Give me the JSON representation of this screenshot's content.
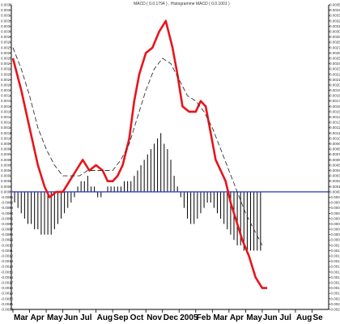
{
  "chart_data": {
    "type": "line",
    "title": "MACD ( 0.0.1794 ) , Histogramme MACD ( 0.0.1001 )",
    "months": [
      "Mar",
      "Apr",
      "May",
      "Jun",
      "Jul",
      "Aug",
      "Sep",
      "Oct",
      "Nov",
      "Dec",
      "2005",
      "Feb",
      "Mar",
      "Apr",
      "May",
      "Jun",
      "Jul",
      "Aug",
      "Se"
    ],
    "ylim": [
      -0.0022,
      0.0035
    ],
    "zero_line": 0,
    "y_ticks": [
      -0.0022,
      -0.0021,
      -0.002,
      -0.0019,
      -0.0018,
      -0.0017,
      -0.0016,
      -0.0015,
      -0.0014,
      -0.0013,
      -0.0012,
      -0.0011,
      -0.001,
      -0.0009,
      -0.0008,
      -0.0007,
      -0.0006,
      -0.0005,
      -0.0004,
      -0.0003,
      -0.0002,
      -0.0001,
      0,
      0.0001,
      0.0002,
      0.0003,
      0.0004,
      0.0005,
      0.0006,
      0.0007,
      0.0008,
      0.0009,
      0.001,
      0.0011,
      0.0012,
      0.0013,
      0.0014,
      0.0015,
      0.0016,
      0.0017,
      0.0018,
      0.0019,
      0.002,
      0.0021,
      0.0022,
      0.0023,
      0.0024,
      0.0025,
      0.0026,
      0.0027,
      0.0028,
      0.0029,
      0.003,
      0.0031,
      0.0032,
      0.0033,
      0.0034,
      0.0035
    ],
    "y_tick_labels": [
      "-0.0022",
      "-0.0021",
      "-0.0020",
      "-0.0019",
      "-0.0018",
      "-0.0017",
      "-0.0016",
      "-0.0015",
      "-0.0014",
      "-0.0013",
      "-0.0012",
      "-0.0011",
      "-0.0010",
      "-0.0009",
      "-0.0008",
      "-0.0007",
      "-0.0006",
      "-0.0005",
      "-0.0004",
      "-0.0003",
      "-0.0002",
      "-0.0001",
      "0.0000",
      "0.0001",
      "0.0002",
      "0.0003",
      "0.0004",
      "0.0005",
      "0.0006",
      "0.0007",
      "0.0008",
      "0.0009",
      "0.0010",
      "0.0011",
      "0.0012",
      "0.0013",
      "0.0014",
      "0.0015",
      "0.0016",
      "0.0017",
      "0.0018",
      "0.0019",
      "0.0020",
      "0.0021",
      "0.0022",
      "0.0023",
      "0.0024",
      "0.0025",
      "0.0026",
      "0.0027",
      "0.0028",
      "0.0029",
      "0.0030",
      "0.0031",
      "0.0032",
      "0.0033",
      "0.0034",
      "0.0035"
    ],
    "series": [
      {
        "role": "macd",
        "color": "#e8141a",
        "style": "solid",
        "x": [
          0,
          0.5,
          1,
          1.5,
          1.9,
          2.2,
          2.6,
          3,
          3.4,
          3.8,
          4.2,
          4.6,
          5,
          5.4,
          5.7,
          6,
          6.3,
          6.6,
          7,
          7.3,
          7.6,
          8,
          8.4,
          8.8,
          9.2,
          9.6,
          9.9,
          10.2,
          10.6,
          11,
          11.3,
          11.6,
          11.9,
          12.2,
          12.5,
          12.8,
          13.1,
          13.4,
          13.8,
          14.2,
          14.6,
          15,
          15.3
        ],
        "y": [
          0.0025,
          0.0019,
          0.0012,
          0.0005,
          0.0001,
          -0.0001,
          0.0,
          0.0,
          0.0002,
          0.0004,
          0.0006,
          0.0004,
          0.0005,
          0.0004,
          0.0002,
          0.0002,
          0.0003,
          0.0005,
          0.001,
          0.0017,
          0.0022,
          0.0026,
          0.0027,
          0.003,
          0.0032,
          0.0027,
          0.0022,
          0.0016,
          0.0015,
          0.0015,
          0.0017,
          0.0016,
          0.0011,
          0.0006,
          0.0004,
          0.0002,
          -0.0002,
          -0.0005,
          -0.0009,
          -0.0012,
          -0.0016,
          -0.0018,
          -0.0018
        ]
      },
      {
        "role": "signal",
        "color": "#333333",
        "style": "dashed",
        "x": [
          0,
          0.5,
          1,
          1.5,
          2,
          2.5,
          3,
          3.5,
          4,
          4.5,
          5,
          5.5,
          6,
          6.5,
          7,
          7.5,
          8,
          8.5,
          9,
          9.5,
          10,
          10.5,
          11,
          11.5,
          12,
          12.5,
          13,
          13.5,
          14,
          14.5,
          15
        ],
        "y": [
          0.0027,
          0.0023,
          0.0018,
          0.0012,
          0.0008,
          0.0005,
          0.0003,
          0.0003,
          0.0003,
          0.0004,
          0.0004,
          0.0004,
          0.0004,
          0.0006,
          0.0009,
          0.0014,
          0.0019,
          0.0023,
          0.0025,
          0.0024,
          0.0021,
          0.0018,
          0.0017,
          0.0015,
          0.0012,
          0.0008,
          0.0004,
          0.0,
          -0.0004,
          -0.0007,
          -0.001
        ]
      }
    ],
    "histogram": {
      "x": [
        0.1,
        0.3,
        0.5,
        0.7,
        0.9,
        1.1,
        1.3,
        1.5,
        1.7,
        1.9,
        2.1,
        2.3,
        2.5,
        2.7,
        2.9,
        3.1,
        3.3,
        3.5,
        3.7,
        3.9,
        4.1,
        4.3,
        4.5,
        4.7,
        4.9,
        5.1,
        5.3,
        5.5,
        5.7,
        5.9,
        6.1,
        6.3,
        6.5,
        6.7,
        6.9,
        7.1,
        7.3,
        7.5,
        7.7,
        7.9,
        8.1,
        8.3,
        8.5,
        8.7,
        8.9,
        9.1,
        9.3,
        9.5,
        9.7,
        9.9,
        10.1,
        10.3,
        10.5,
        10.7,
        10.9,
        11.1,
        11.3,
        11.5,
        11.7,
        11.9,
        12.1,
        12.3,
        12.5,
        12.7,
        12.9,
        13.1,
        13.3,
        13.5,
        13.7,
        13.9,
        14.1,
        14.3,
        14.5,
        14.7,
        14.9
      ],
      "y": [
        -0.0002,
        -0.0003,
        -0.0004,
        -0.0005,
        -0.0006,
        -0.0006,
        -0.0007,
        -0.0007,
        -0.0008,
        -0.0008,
        -0.0008,
        -0.0008,
        -0.0007,
        -0.0006,
        -0.0005,
        -0.0004,
        -0.0003,
        -0.0002,
        -0.0001,
        0.0001,
        0.0002,
        0.0002,
        0.0003,
        0.0001,
        0.0001,
        -0.0001,
        -0.0001,
        0.0,
        0.0001,
        0.0001,
        0.0001,
        0.0001,
        0.0001,
        0.0002,
        0.0002,
        0.0002,
        0.0003,
        0.0004,
        0.0005,
        0.0006,
        0.0007,
        0.0008,
        0.0009,
        0.001,
        0.0011,
        0.0009,
        0.0008,
        0.0006,
        0.0003,
        0.0001,
        -0.0001,
        -0.0003,
        -0.0005,
        -0.0006,
        -0.0006,
        -0.0005,
        -0.0004,
        -0.0003,
        -0.0002,
        -0.0002,
        -0.0003,
        -0.0004,
        -0.0005,
        -0.0006,
        -0.0007,
        -0.0008,
        -0.0009,
        -0.001,
        -0.001,
        -0.0011,
        -0.0011,
        -0.0011,
        -0.0011,
        -0.0011,
        -0.0011
      ],
      "color": "#000000"
    },
    "zero_line_color": "#2233cc",
    "grid": false
  }
}
